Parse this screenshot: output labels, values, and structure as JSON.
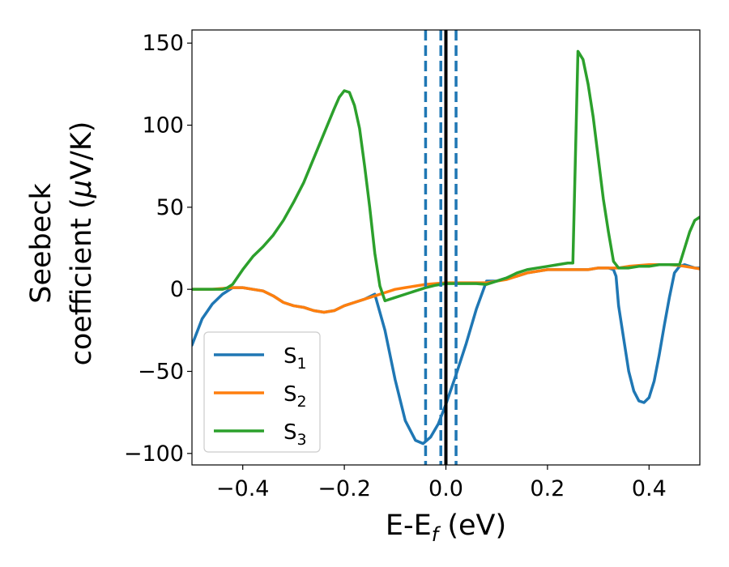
{
  "chart_data": {
    "type": "line",
    "xlabel": {
      "main": "E-E",
      "sub": "f",
      "unit": " (eV)"
    },
    "ylabel": {
      "line1": "Seebeck",
      "line2": "coefficient  (",
      "mu": "μ",
      "unit": "V/K)"
    },
    "xlim": [
      -0.5,
      0.5
    ],
    "ylim": [
      -107,
      158
    ],
    "x_ticks": [
      -0.4,
      -0.2,
      0.0,
      0.2,
      0.4
    ],
    "x_tick_labels": [
      "−0.4",
      "−0.2",
      "0.0",
      "0.2",
      "0.4"
    ],
    "y_ticks": [
      -100,
      -50,
      0,
      50,
      100,
      150
    ],
    "y_tick_labels": [
      "−100",
      "−50",
      "0",
      "50",
      "100",
      "150"
    ],
    "grid": false,
    "legend_position": "lower-left",
    "vlines": [
      {
        "x": -0.04,
        "style": "dashed",
        "color": "#1f77b4"
      },
      {
        "x": -0.01,
        "style": "dashed",
        "color": "#1f77b4"
      },
      {
        "x": 0.02,
        "style": "dashed",
        "color": "#1f77b4"
      },
      {
        "x": 0.0,
        "style": "solid",
        "color": "#000000"
      }
    ],
    "series": [
      {
        "name": "S",
        "sub": "1",
        "color": "#1f77b4",
        "x": [
          -0.5,
          -0.48,
          -0.46,
          -0.44,
          -0.42,
          -0.4,
          -0.38,
          -0.36,
          -0.34,
          -0.32,
          -0.3,
          -0.28,
          -0.26,
          -0.24,
          -0.22,
          -0.2,
          -0.18,
          -0.16,
          -0.14,
          -0.12,
          -0.1,
          -0.08,
          -0.06,
          -0.045,
          -0.03,
          -0.015,
          0.0,
          0.02,
          0.04,
          0.06,
          0.08,
          0.1,
          0.12,
          0.14,
          0.16,
          0.18,
          0.2,
          0.22,
          0.24,
          0.26,
          0.28,
          0.3,
          0.32,
          0.33,
          0.335,
          0.34,
          0.35,
          0.36,
          0.37,
          0.38,
          0.39,
          0.4,
          0.41,
          0.42,
          0.43,
          0.44,
          0.45,
          0.46,
          0.47,
          0.48,
          0.49,
          0.5
        ],
        "y": [
          -34,
          -18,
          -9,
          -3,
          1,
          1,
          0,
          -1,
          -4,
          -8,
          -10,
          -11,
          -13,
          -14,
          -13,
          -10,
          -8,
          -6,
          -3,
          -25,
          -55,
          -80,
          -92,
          -94,
          -90,
          -82,
          -70,
          -52,
          -33,
          -12,
          5,
          5,
          7,
          8,
          10,
          11,
          12,
          12,
          12,
          12,
          12,
          13,
          13,
          12,
          8,
          -10,
          -30,
          -50,
          -62,
          -68,
          -69,
          -66,
          -56,
          -40,
          -22,
          -5,
          10,
          14,
          15,
          14,
          13,
          13
        ]
      },
      {
        "name": "S",
        "sub": "2",
        "color": "#ff7f0e",
        "x": [
          -0.5,
          -0.48,
          -0.46,
          -0.44,
          -0.42,
          -0.4,
          -0.38,
          -0.36,
          -0.34,
          -0.32,
          -0.3,
          -0.28,
          -0.26,
          -0.24,
          -0.22,
          -0.2,
          -0.18,
          -0.16,
          -0.14,
          -0.12,
          -0.1,
          -0.08,
          -0.06,
          -0.04,
          -0.02,
          0.0,
          0.02,
          0.04,
          0.06,
          0.08,
          0.1,
          0.12,
          0.14,
          0.16,
          0.18,
          0.2,
          0.22,
          0.24,
          0.26,
          0.28,
          0.3,
          0.32,
          0.34,
          0.36,
          0.38,
          0.4,
          0.42,
          0.44,
          0.46,
          0.48,
          0.5
        ],
        "y": [
          0,
          0,
          0,
          0.5,
          1,
          1,
          0,
          -1,
          -4,
          -8,
          -10,
          -11,
          -13,
          -14,
          -13,
          -10,
          -8,
          -6,
          -4,
          -2,
          0,
          1,
          2,
          3,
          3.5,
          4,
          4,
          4,
          4,
          4,
          5,
          6,
          8,
          10,
          11,
          12,
          12,
          12,
          12,
          12,
          13,
          13,
          13,
          14,
          14.5,
          15,
          15,
          15,
          14.5,
          13.5,
          12.5
        ]
      },
      {
        "name": "S",
        "sub": "3",
        "color": "#2ca02c",
        "x": [
          -0.5,
          -0.48,
          -0.46,
          -0.44,
          -0.43,
          -0.42,
          -0.4,
          -0.38,
          -0.36,
          -0.34,
          -0.32,
          -0.3,
          -0.28,
          -0.26,
          -0.24,
          -0.22,
          -0.21,
          -0.2,
          -0.19,
          -0.18,
          -0.17,
          -0.16,
          -0.15,
          -0.14,
          -0.13,
          -0.12,
          -0.1,
          -0.08,
          -0.06,
          -0.04,
          -0.02,
          0.0,
          0.02,
          0.04,
          0.06,
          0.08,
          0.1,
          0.12,
          0.14,
          0.16,
          0.18,
          0.2,
          0.22,
          0.24,
          0.25,
          0.26,
          0.27,
          0.28,
          0.29,
          0.3,
          0.31,
          0.32,
          0.33,
          0.34,
          0.36,
          0.38,
          0.4,
          0.42,
          0.44,
          0.46,
          0.47,
          0.48,
          0.49,
          0.5
        ],
        "y": [
          0,
          0,
          0,
          0,
          1,
          3,
          12,
          20,
          26,
          33,
          42,
          53,
          65,
          80,
          95,
          110,
          117,
          121,
          120,
          112,
          98,
          75,
          50,
          22,
          2,
          -7,
          -5,
          -3,
          -1,
          1,
          2.5,
          3.5,
          3.5,
          3.5,
          3.5,
          3,
          5,
          7,
          10,
          12,
          13,
          14,
          15,
          16,
          16,
          145,
          140,
          125,
          105,
          80,
          55,
          35,
          17,
          13,
          13,
          14,
          14,
          15,
          15,
          15,
          25,
          35,
          42,
          44
        ]
      }
    ]
  }
}
